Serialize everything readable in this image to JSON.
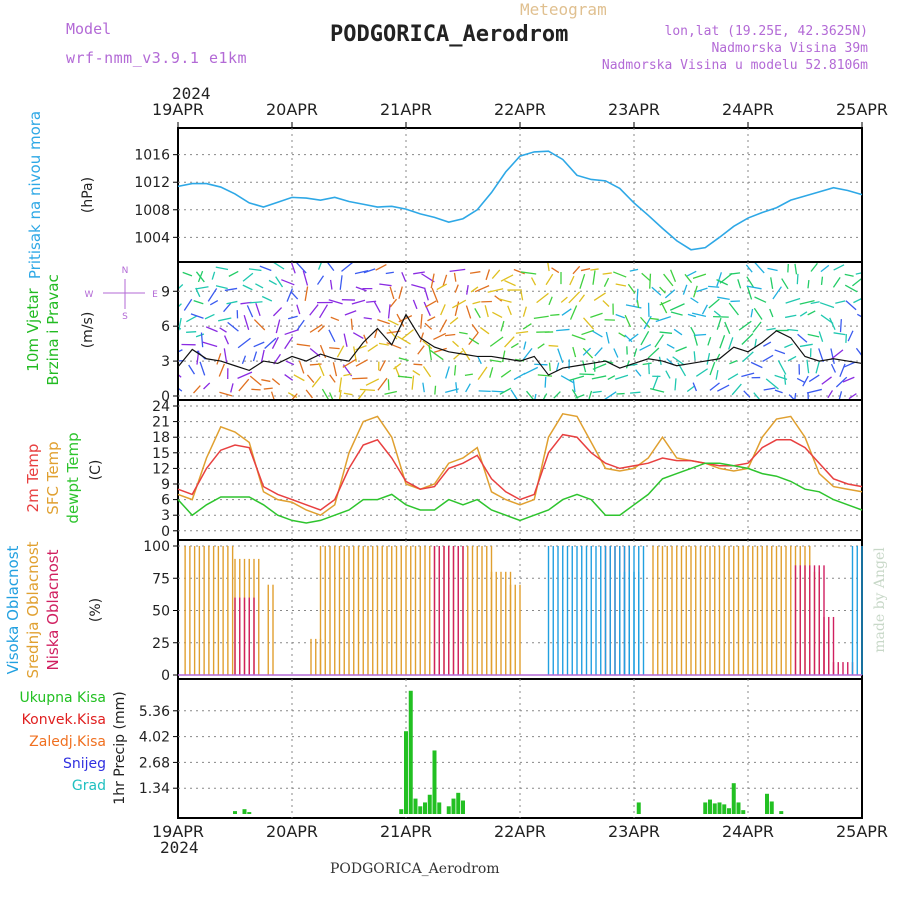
{
  "header": {
    "model_label": "Model",
    "model_name": "wrf-nmm_v3.9.1 e1km",
    "product": "Meteogram",
    "station": "PODGORICA_Aerodrom",
    "coords": "lon,lat (19.25E, 42.3625N)",
    "elevation": "Nadmorska Visina 39m",
    "model_elevation": "Nadmorska Visina u modelu 52.8106m",
    "year": "2024"
  },
  "footer": {
    "station": "PODGORICA_Aerodrom",
    "credit": "made by Angel"
  },
  "colors": {
    "pressure": "#2ea8e6",
    "wind_label": "#22bb22",
    "temp": "#e84040",
    "sfc_temp": "#e0a030",
    "dewpoint": "#2ec42e",
    "high_cloud": "#22a0e0",
    "mid_cloud": "#e0a030",
    "low_cloud": "#d02060",
    "total_precip": "#22c022",
    "conv_precip": "#e02020",
    "frozen_precip": "#f07020",
    "snow": "#3030e0",
    "grad": "#20c0c0",
    "grid": "#888888",
    "credit": "#c8d8c8"
  },
  "chart_data": [
    {
      "type": "line",
      "id": "pressure",
      "ylabel": "Pritisak na nivou mora",
      "unit": "(hPa)",
      "ylim": [
        1001,
        1019
      ],
      "yticks": [
        "1004",
        "1008",
        "1012",
        "1016"
      ],
      "x_days": [
        "19APR",
        "20APR",
        "21APR",
        "22APR",
        "23APR",
        "24APR",
        "25APR"
      ],
      "x_hours": [
        0,
        3,
        6,
        9,
        12,
        15,
        18,
        21,
        24,
        27,
        30,
        33,
        36,
        39,
        42,
        45,
        48,
        51,
        54,
        57,
        60,
        63,
        66,
        69,
        72,
        75,
        78,
        81,
        84,
        87,
        90,
        93,
        96,
        99,
        102,
        105,
        108,
        111,
        114,
        117,
        120,
        123,
        126,
        129,
        132,
        135,
        138,
        141,
        144
      ],
      "series": [
        {
          "values": [
            1011.4,
            1011.8,
            1011.8,
            1011.3,
            1010.3,
            1009.0,
            1008.4,
            1009.1,
            1009.8,
            1009.7,
            1009.4,
            1009.8,
            1009.2,
            1008.8,
            1008.4,
            1008.5,
            1008.1,
            1007.4,
            1006.9,
            1006.2,
            1006.7,
            1008.0,
            1010.5,
            1013.5,
            1015.8,
            1016.4,
            1016.5,
            1015.3,
            1013.0,
            1012.4,
            1012.2,
            1011.1,
            1009.0,
            1007.2,
            1005.3,
            1003.5,
            1002.2,
            1002.5,
            1004.0,
            1005.6,
            1006.8,
            1007.6,
            1008.3,
            1009.4,
            1010.0,
            1010.6,
            1011.2,
            1010.8,
            1010.2
          ]
        }
      ]
    },
    {
      "type": "line",
      "id": "wind",
      "ylabel": "10m Vjetar Brzina i Pravac",
      "unit": "(m/s)",
      "compass": {
        "n": "N",
        "s": "S",
        "e": "E",
        "w": "W"
      },
      "ylim": [
        0,
        11
      ],
      "yticks": [
        "0",
        "3",
        "6",
        "9"
      ],
      "x_hours": [
        0,
        3,
        6,
        9,
        12,
        15,
        18,
        21,
        24,
        27,
        30,
        33,
        36,
        39,
        42,
        45,
        48,
        51,
        54,
        57,
        60,
        63,
        66,
        69,
        72,
        75,
        78,
        81,
        84,
        87,
        90,
        93,
        96,
        99,
        102,
        105,
        108,
        111,
        114,
        117,
        120,
        123,
        126,
        129,
        132,
        135,
        138,
        141,
        144
      ],
      "series": [
        {
          "name": "speed",
          "values": [
            2.5,
            4.0,
            3.2,
            3.0,
            2.6,
            2.2,
            3.0,
            2.8,
            3.4,
            3.0,
            3.6,
            3.2,
            3.0,
            4.6,
            5.8,
            4.4,
            7.0,
            5.0,
            4.2,
            3.8,
            3.6,
            3.4,
            3.4,
            3.2,
            3.0,
            3.4,
            1.8,
            2.4,
            2.6,
            2.8,
            3.0,
            2.4,
            2.8,
            3.2,
            3.0,
            2.6,
            2.8,
            3.0,
            3.2,
            4.2,
            3.8,
            4.6,
            5.6,
            5.0,
            3.4,
            3.0,
            3.2,
            3.0,
            2.8
          ]
        }
      ]
    },
    {
      "type": "line",
      "id": "temperature",
      "ylabel": "2m Temp",
      "ylabel2": "SFC Temp",
      "ylabel3": "dewpt Temp",
      "unit": "(C)",
      "ylim": [
        -1,
        24
      ],
      "yticks": [
        "0",
        "3",
        "6",
        "9",
        "12",
        "15",
        "18",
        "21",
        "24"
      ],
      "x_hours": [
        0,
        3,
        6,
        9,
        12,
        15,
        18,
        21,
        24,
        27,
        30,
        33,
        36,
        39,
        42,
        45,
        48,
        51,
        54,
        57,
        60,
        63,
        66,
        69,
        72,
        75,
        78,
        81,
        84,
        87,
        90,
        93,
        96,
        99,
        102,
        105,
        108,
        111,
        114,
        117,
        120,
        123,
        126,
        129,
        132,
        135,
        138,
        141,
        144
      ],
      "series": [
        {
          "name": "2m Temp",
          "values": [
            8,
            7,
            12,
            15.5,
            16.5,
            16,
            8.5,
            7,
            6,
            5,
            4,
            6,
            12,
            16.5,
            17.5,
            14,
            9.5,
            8,
            8.5,
            12,
            13,
            14.5,
            10,
            7.5,
            6,
            7,
            15,
            18.5,
            18,
            15,
            13,
            12,
            12.5,
            13,
            14,
            13.5,
            13.5,
            13,
            12.5,
            12.5,
            13,
            16,
            17.5,
            17.5,
            16,
            13,
            10,
            9,
            8.5
          ]
        },
        {
          "name": "SFC Temp",
          "values": [
            7,
            6,
            14,
            20,
            19,
            17,
            7.5,
            6,
            5.5,
            4,
            3,
            5,
            15,
            21,
            22,
            18,
            9,
            8,
            9,
            13,
            14,
            16,
            7.5,
            6,
            5,
            6,
            18,
            22.5,
            22,
            17,
            12,
            11.5,
            12,
            14,
            18,
            14,
            13.5,
            13,
            12,
            11.5,
            12,
            18,
            21.5,
            22,
            18,
            11,
            8.5,
            8,
            7.5
          ]
        },
        {
          "name": "dewpt Temp",
          "values": [
            6,
            3,
            5,
            6.5,
            6.5,
            6.5,
            5,
            3,
            2,
            1.5,
            2,
            3,
            4,
            6,
            6,
            7,
            5,
            4,
            4,
            6,
            5,
            6,
            4,
            3,
            2,
            3,
            4,
            6,
            7,
            6,
            3,
            3,
            5,
            7,
            10,
            11,
            12,
            13,
            13,
            12.5,
            12,
            11,
            10.5,
            9.5,
            8,
            7.5,
            6,
            5,
            4
          ]
        }
      ]
    },
    {
      "type": "bar",
      "id": "cloud",
      "ylabel": "Visoka Oblacnost",
      "ylabel2": "Srednja Oblacnost",
      "ylabel3": "Niska Oblacnost",
      "unit": "(%)",
      "ylim": [
        0,
        100
      ],
      "yticks": [
        "0",
        "25",
        "50",
        "75",
        "100"
      ],
      "series": [
        {
          "name": "Srednja Oblacnost",
          "segments": [
            [
              1.5,
              12,
              100
            ],
            [
              12,
              17,
              90
            ],
            [
              19,
              20,
              70
            ],
            [
              28,
              30,
              28
            ],
            [
              30,
              66,
              100
            ],
            [
              66,
              70,
              80
            ],
            [
              70,
              72,
              70
            ],
            [
              100,
              133,
              100
            ],
            [
              133,
              135,
              80
            ],
            [
              135,
              137,
              35
            ]
          ]
        },
        {
          "name": "Niska Oblacnost",
          "segments": [
            [
              12,
              16,
              60
            ],
            [
              54,
              60,
              100
            ],
            [
              90,
              95,
              100
            ],
            [
              130,
              136,
              85
            ],
            [
              136,
              138,
              45
            ],
            [
              138,
              142,
              10
            ]
          ]
        },
        {
          "name": "Visoka Oblacnost",
          "segments": [
            [
              78,
              83,
              100
            ],
            [
              84,
              98,
              100
            ],
            [
              93,
              97,
              80
            ],
            [
              142,
              144,
              100
            ]
          ]
        }
      ]
    },
    {
      "type": "bar",
      "id": "precip",
      "ylabel": "1hr Precip",
      "unit": "(mm)",
      "ylim": [
        0,
        6.7
      ],
      "yticks": [
        "1.34",
        "2.68",
        "4.02",
        "5.36"
      ],
      "series_labels": [
        "Ukupna Kisa",
        "Konvek.Kisa",
        "Zaledj.Kisa",
        "Snijeg",
        "Grad"
      ],
      "bars": [
        [
          12,
          0.15
        ],
        [
          14,
          0.25
        ],
        [
          15,
          0.1
        ],
        [
          47,
          0.25
        ],
        [
          48,
          4.3
        ],
        [
          49,
          6.4
        ],
        [
          50,
          0.8
        ],
        [
          51,
          0.4
        ],
        [
          52,
          0.6
        ],
        [
          53,
          1.0
        ],
        [
          54,
          3.3
        ],
        [
          55,
          0.6
        ],
        [
          57,
          0.4
        ],
        [
          58,
          0.8
        ],
        [
          59,
          1.1
        ],
        [
          60,
          0.7
        ],
        [
          97,
          0.6
        ],
        [
          111,
          0.6
        ],
        [
          112,
          0.75
        ],
        [
          113,
          0.55
        ],
        [
          114,
          0.6
        ],
        [
          115,
          0.5
        ],
        [
          116,
          0.3
        ],
        [
          117,
          1.6
        ],
        [
          118,
          0.6
        ],
        [
          119,
          0.2
        ],
        [
          124,
          1.05
        ],
        [
          125,
          0.65
        ],
        [
          127,
          0.15
        ]
      ]
    }
  ]
}
